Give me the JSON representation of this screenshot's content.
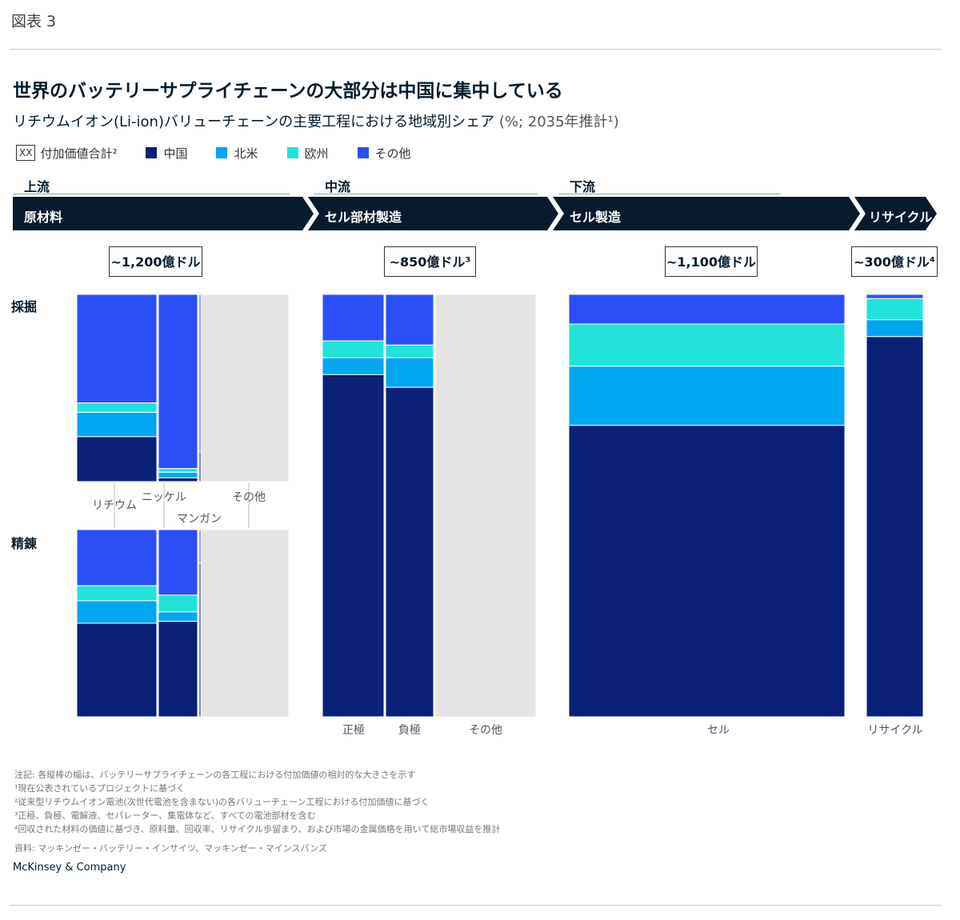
{
  "figure_label": "図表 3",
  "title": "世界のバッテリーサプライチェーンの大部分は中国に集中している",
  "subtitle": "リチウムイオン(Li-ion)バリューチェーンの主要工程における地域別シェア",
  "subtitle_unit": "(%; 2035年推計¹)",
  "legend": {
    "total_box": "XX",
    "total_label": "付加価値合計²",
    "items": [
      {
        "label": "中国",
        "color": "#0b2077"
      },
      {
        "label": "北米",
        "color": "#00a6f0"
      },
      {
        "label": "欧州",
        "color": "#21e3d8"
      },
      {
        "label": "その他",
        "color": "#2a4ff6"
      }
    ]
  },
  "stages": {
    "upstream": "上流",
    "midstream": "中流",
    "downstream": "下流"
  },
  "processes": [
    "原材料",
    "セル部材製造",
    "セル製造",
    "リサイクル"
  ],
  "totals": [
    "~1,200億ドル",
    "~850億ドル³",
    "~1,100億ドル",
    "~300億ドル⁴"
  ],
  "row_labels": {
    "mining": "採掘",
    "refining": "精錬"
  },
  "colors": {
    "china": "#0b2077",
    "north_america": "#00a6f0",
    "europe": "#21e3d8",
    "other": "#2a4ff6",
    "not_shown": "#e6e3e5",
    "header_bar": "#081a2c"
  },
  "chart_data": {
    "type": "marimekko",
    "series": [
      "中国",
      "北米",
      "欧州",
      "その他"
    ],
    "groups": [
      {
        "name": "原材料 採掘",
        "columns": [
          {
            "label": "リチウム",
            "shares": {
              "中国": 24,
              "北米": 13,
              "欧州": 5,
              "その他": 58
            }
          },
          {
            "label": "ニッケル",
            "shares": {
              "中国": 2,
              "北米": 3,
              "欧州": 2,
              "その他": 93
            }
          },
          {
            "label": "マンガン",
            "shares": {
              "中国": 16,
              "北米": 0,
              "欧州": 0,
              "その他": 84
            }
          },
          {
            "label": "その他",
            "shares": null
          }
        ]
      },
      {
        "name": "原材料 精錬",
        "columns": [
          {
            "label": "リチウム",
            "shares": {
              "中国": 50,
              "北米": 12,
              "欧州": 8,
              "その他": 30
            }
          },
          {
            "label": "ニッケル",
            "shares": {
              "中国": 51,
              "北米": 5,
              "欧州": 9,
              "その他": 35
            }
          },
          {
            "label": "マンガン",
            "shares": {
              "中国": 82,
              "北米": 0,
              "欧州": 0,
              "その他": 18
            }
          },
          {
            "label": "その他",
            "shares": null
          }
        ]
      },
      {
        "name": "セル部材製造",
        "columns": [
          {
            "label": "正極",
            "shares": {
              "中国": 81,
              "北米": 4,
              "欧州": 4,
              "その他": 11
            }
          },
          {
            "label": "負極",
            "shares": {
              "中国": 78,
              "北米": 7,
              "欧州": 3,
              "その他": 12
            }
          },
          {
            "label": "その他",
            "shares": null
          }
        ]
      },
      {
        "name": "セル製造",
        "columns": [
          {
            "label": "セル",
            "shares": {
              "中国": 69,
              "北米": 14,
              "欧州": 10,
              "その他": 7
            }
          }
        ]
      },
      {
        "name": "リサイクル",
        "columns": [
          {
            "label": "リサイクル",
            "shares": {
              "中国": 90,
              "北米": 4,
              "欧州": 5,
              "その他": 1
            }
          }
        ]
      }
    ],
    "x_labels": {
      "mining": [
        "リチウム",
        "ニッケル",
        "マンガン",
        "その他"
      ],
      "components": [
        "正極",
        "負極",
        "その他"
      ],
      "cell": [
        "セル"
      ],
      "recycling": [
        "リサイクル"
      ]
    }
  },
  "notes": [
    "注記: 各縦棒の幅は、バッテリーサプライチェーンの各工程における付加価値の相対的な大きさを示す",
    "¹現在公表されているプロジェクトに基づく",
    "²従来型リチウムイオン電池(次世代電池を含まない)の各バリューチェーン工程における付加価値に基づく",
    "³正極、負極、電解液、セパレーター、集電体など、すべての電池部材を含む",
    "⁴回収された材料の価値に基づき、原料量、回収率、リサイクル歩留まり、および市場の金属価格を用いて総市場収益を推計"
  ],
  "source": "資料: マッキンゼー・バッテリー・インサイツ、マッキンゼー・マインスパンズ",
  "brand": "McKinsey & Company"
}
